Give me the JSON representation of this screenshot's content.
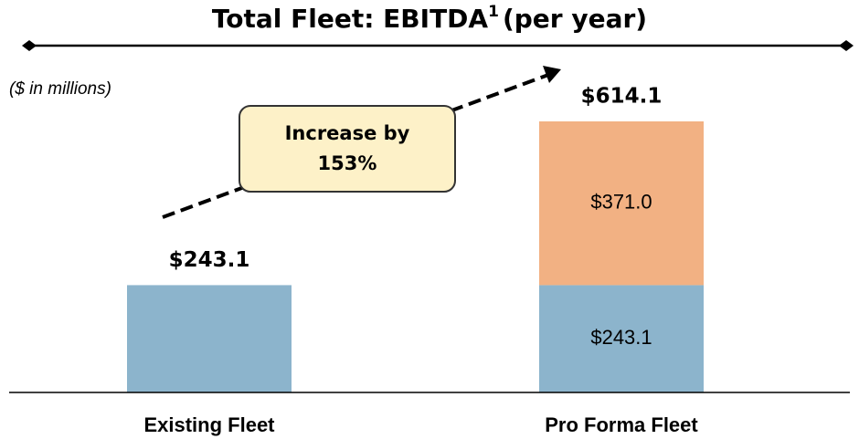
{
  "chart_data": {
    "type": "stacked_bar",
    "title": "Total Fleet: EBITDA",
    "title_footnote": "1",
    "title_suffix": "(per year)",
    "subtitle": "($ in millions)",
    "annotation": [
      "Increase by",
      "153%"
    ],
    "categories": [
      "Existing Fleet",
      "Pro Forma Fleet"
    ],
    "series": [
      {
        "color": "#8cb4cc",
        "values": [
          243.1,
          243.1
        ],
        "value_labels": [
          null,
          "$243.1"
        ]
      },
      {
        "color": "#f2b183",
        "values": [
          null,
          371.0
        ],
        "value_labels": [
          null,
          "$371.0"
        ]
      }
    ],
    "totals": {
      "values": [
        243.1,
        614.1
      ],
      "value_labels": [
        "$243.1",
        "$614.1"
      ]
    },
    "ylim": [
      0,
      614.1
    ]
  }
}
